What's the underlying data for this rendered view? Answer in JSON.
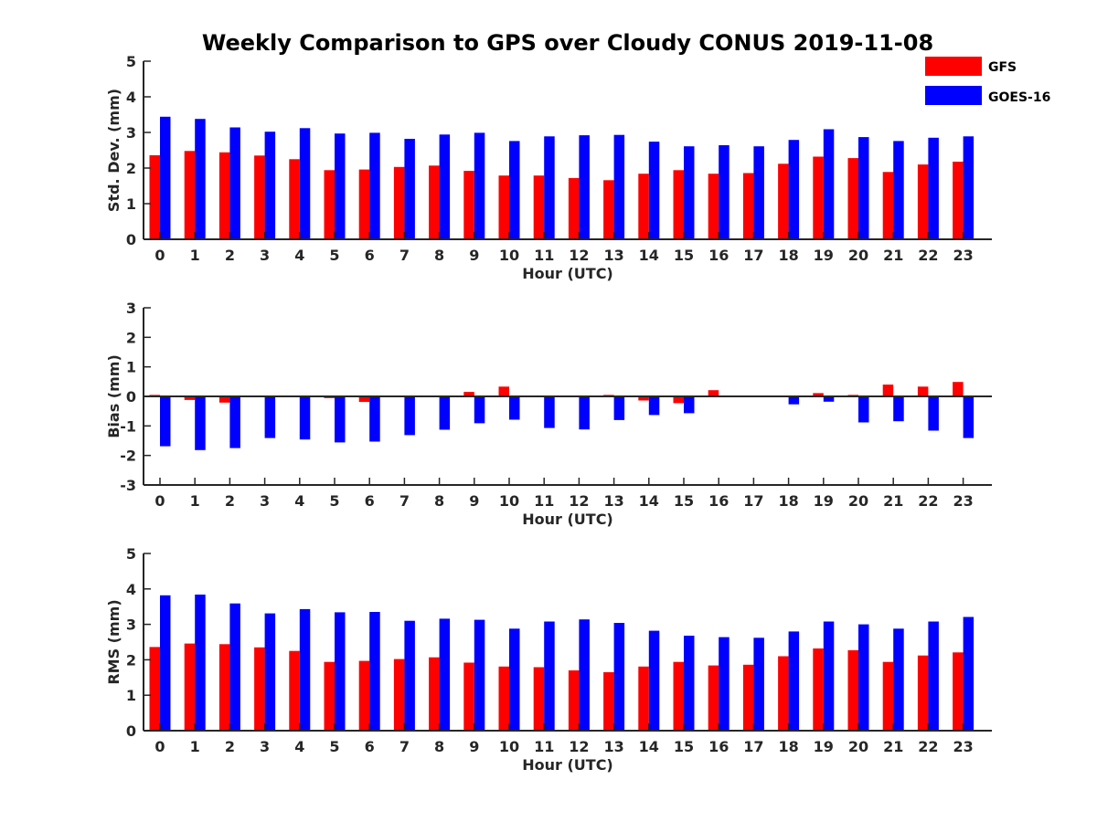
{
  "title": "Weekly Comparison to GPS over Cloudy CONUS 2019-11-08",
  "legend": [
    {
      "name": "GFS",
      "color": "#ff0000"
    },
    {
      "name": "GOES-16",
      "color": "#0000ff"
    }
  ],
  "chart_data": [
    {
      "type": "bar",
      "ylabel": "Std. Dev. (mm)",
      "xlabel": "Hour (UTC)",
      "ylim": [
        0,
        5
      ],
      "yticks": [
        0,
        1,
        2,
        3,
        4,
        5
      ],
      "categories": [
        "0",
        "1",
        "2",
        "3",
        "4",
        "5",
        "6",
        "7",
        "8",
        "9",
        "10",
        "11",
        "12",
        "13",
        "14",
        "15",
        "16",
        "17",
        "18",
        "19",
        "20",
        "21",
        "22",
        "23"
      ],
      "series": [
        {
          "name": "GFS",
          "values": [
            2.36,
            2.48,
            2.44,
            2.35,
            2.25,
            1.94,
            1.96,
            2.03,
            2.07,
            1.92,
            1.79,
            1.79,
            1.72,
            1.66,
            1.84,
            1.94,
            1.84,
            1.86,
            2.12,
            2.32,
            2.28,
            1.89,
            2.1,
            2.18
          ]
        },
        {
          "name": "GOES-16",
          "values": [
            3.44,
            3.38,
            3.14,
            3.02,
            3.12,
            2.97,
            2.99,
            2.82,
            2.94,
            2.99,
            2.76,
            2.89,
            2.92,
            2.93,
            2.74,
            2.61,
            2.64,
            2.61,
            2.79,
            3.09,
            2.87,
            2.76,
            2.85,
            2.89
          ]
        }
      ]
    },
    {
      "type": "bar",
      "ylabel": "Bias (mm)",
      "xlabel": "Hour (UTC)",
      "ylim": [
        -3,
        3
      ],
      "yticks": [
        -3,
        -2,
        -1,
        0,
        1,
        2,
        3
      ],
      "categories": [
        "0",
        "1",
        "2",
        "3",
        "4",
        "5",
        "6",
        "7",
        "8",
        "9",
        "10",
        "11",
        "12",
        "13",
        "14",
        "15",
        "16",
        "17",
        "18",
        "19",
        "20",
        "21",
        "22",
        "23"
      ],
      "series": [
        {
          "name": "GFS",
          "values": [
            0.05,
            -0.12,
            -0.21,
            0.0,
            -0.03,
            -0.06,
            -0.19,
            0.0,
            0.02,
            0.15,
            0.33,
            -0.03,
            -0.02,
            0.05,
            -0.14,
            -0.23,
            0.21,
            0.0,
            0.0,
            0.11,
            0.05,
            0.4,
            0.33,
            0.49
          ]
        },
        {
          "name": "GOES-16",
          "values": [
            -1.69,
            -1.82,
            -1.75,
            -1.41,
            -1.46,
            -1.56,
            -1.53,
            -1.31,
            -1.13,
            -0.91,
            -0.79,
            -1.07,
            -1.12,
            -0.8,
            -0.63,
            -0.57,
            0.0,
            0.03,
            -0.27,
            -0.18,
            -0.88,
            -0.84,
            -1.16,
            -1.41
          ]
        }
      ]
    },
    {
      "type": "bar",
      "ylabel": "RMS (mm)",
      "xlabel": "Hour (UTC)",
      "ylim": [
        0,
        5
      ],
      "yticks": [
        0,
        1,
        2,
        3,
        4,
        5
      ],
      "categories": [
        "0",
        "1",
        "2",
        "3",
        "4",
        "5",
        "6",
        "7",
        "8",
        "9",
        "10",
        "11",
        "12",
        "13",
        "14",
        "15",
        "16",
        "17",
        "18",
        "19",
        "20",
        "21",
        "22",
        "23"
      ],
      "series": [
        {
          "name": "GFS",
          "values": [
            2.36,
            2.46,
            2.44,
            2.35,
            2.25,
            1.94,
            1.97,
            2.02,
            2.07,
            1.92,
            1.81,
            1.79,
            1.7,
            1.65,
            1.81,
            1.94,
            1.84,
            1.86,
            2.1,
            2.32,
            2.27,
            1.94,
            2.12,
            2.21
          ]
        },
        {
          "name": "GOES-16",
          "values": [
            3.82,
            3.84,
            3.59,
            3.31,
            3.43,
            3.34,
            3.35,
            3.1,
            3.16,
            3.13,
            2.88,
            3.08,
            3.14,
            3.04,
            2.82,
            2.68,
            2.64,
            2.62,
            2.8,
            3.08,
            3.0,
            2.88,
            3.08,
            3.21
          ]
        }
      ]
    }
  ]
}
